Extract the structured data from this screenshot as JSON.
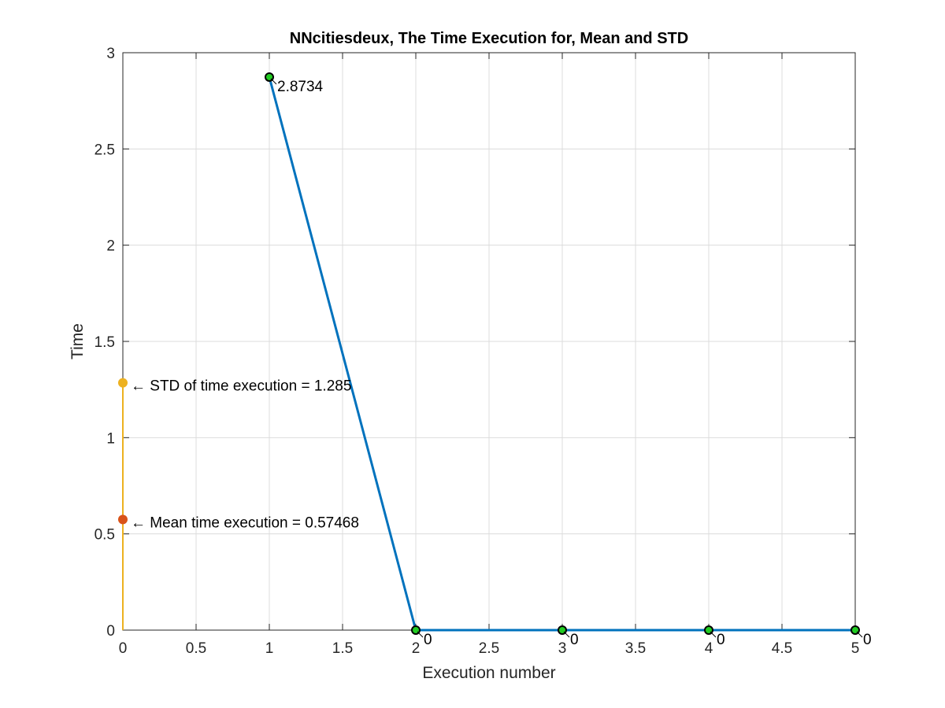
{
  "chart_data": {
    "type": "line",
    "title": "NNcitiesdeux, The Time Execution for, Mean and STD",
    "xlabel": "Execution number",
    "ylabel": "Time",
    "xlim": [
      0,
      5
    ],
    "ylim": [
      0,
      3
    ],
    "xticks": [
      "0",
      "0.5",
      "1",
      "1.5",
      "2",
      "2.5",
      "3",
      "3.5",
      "4",
      "4.5",
      "5"
    ],
    "yticks": [
      "0",
      "0.5",
      "1",
      "1.5",
      "2",
      "2.5",
      "3"
    ],
    "grid": true,
    "series": [
      {
        "x": [
          1,
          2,
          3,
          4,
          5
        ],
        "values": [
          2.8734,
          0,
          0,
          0,
          0
        ],
        "labels": [
          "2.8734",
          "0",
          "0",
          "0",
          "0"
        ],
        "color": "#0072BD",
        "marker_fill": "#22CC22"
      }
    ],
    "stats_line": {
      "x": 0,
      "y_from": 0,
      "y_to": 1.285,
      "color": "#EDB120"
    },
    "annotations": [
      {
        "x": 0,
        "y": 1.285,
        "text": "← STD of time execution = 1.285",
        "color": "#EDB120"
      },
      {
        "x": 0,
        "y": 0.57468,
        "text": "← Mean time execution = 0.57468",
        "color": "#D95319"
      }
    ]
  }
}
